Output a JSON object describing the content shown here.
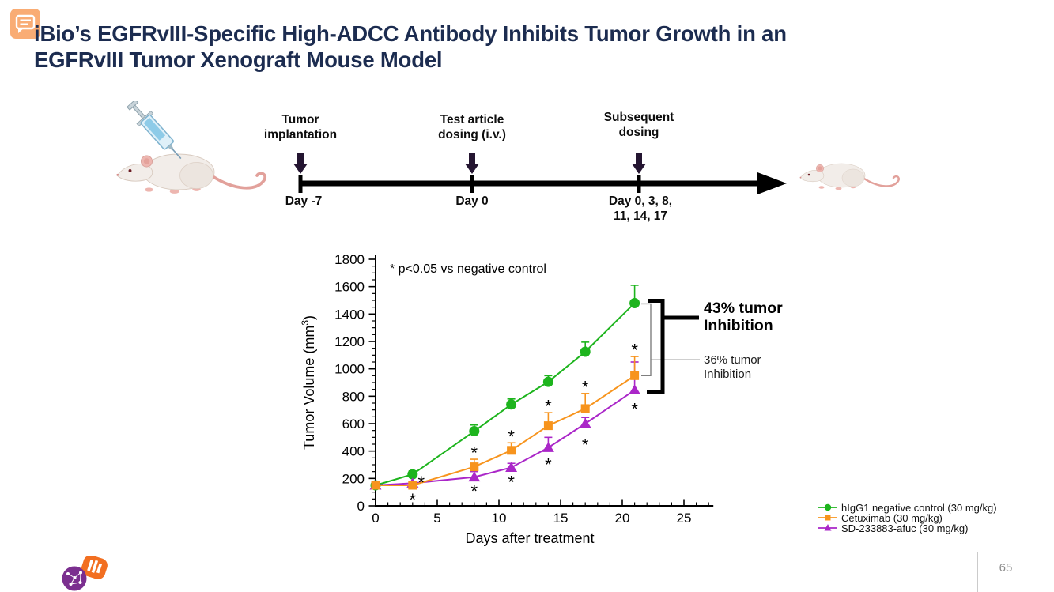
{
  "slide": {
    "title_line1": "iBio’s EGFRvIII-Specific High-ADCC Antibody Inhibits Tumor Growth in an",
    "title_line2": "EGFRvIII Tumor Xenograft Mouse Model",
    "page_number": "65"
  },
  "timeline": {
    "events": [
      {
        "label1": "Tumor",
        "label2": "implantation",
        "day1": "Day -7",
        "day2": ""
      },
      {
        "label1": "Test article",
        "label2": "dosing (i.v.)",
        "day1": "Day 0",
        "day2": ""
      },
      {
        "label1": "Subsequent",
        "label2": "dosing",
        "day1": "Day 0, 3, 8,",
        "day2": "11, 14, 17"
      }
    ]
  },
  "chart_data": {
    "type": "line",
    "title": "",
    "xlabel": "Days after treatment",
    "ylabel": "Tumor Volume (mm³)",
    "significance_note": "* p<0.05 vs negative control",
    "xlim": [
      0,
      27
    ],
    "ylim": [
      0,
      1800
    ],
    "x_ticks": [
      0,
      5,
      10,
      15,
      20,
      25
    ],
    "y_ticks": [
      0,
      200,
      400,
      600,
      800,
      1000,
      1200,
      1400,
      1600,
      1800
    ],
    "x_minor_step": 1,
    "y_minor_step": 50,
    "grid": false,
    "legend_position": "bottom-right",
    "x": [
      0,
      3,
      8,
      11,
      14,
      17,
      21
    ],
    "series": [
      {
        "name": "hIgG1 negative control (30 mg/kg)",
        "marker": "circle",
        "color": "#1db41d",
        "values": [
          150,
          230,
          545,
          740,
          905,
          1125,
          1480
        ],
        "errors_plus": [
          15,
          25,
          45,
          40,
          45,
          70,
          130
        ]
      },
      {
        "name": "Cetuximab (30 mg/kg)",
        "marker": "square",
        "color": "#f7941d",
        "values": [
          150,
          150,
          285,
          405,
          585,
          710,
          950
        ],
        "errors_plus": [
          10,
          15,
          55,
          55,
          95,
          110,
          140
        ]
      },
      {
        "name": "SD-233883-afuc (30 mg/kg)",
        "marker": "triangle",
        "color": "#aa26c8",
        "values": [
          150,
          165,
          210,
          280,
          425,
          600,
          845
        ],
        "errors_plus": [
          10,
          15,
          40,
          30,
          75,
          45,
          205
        ]
      }
    ],
    "asterisks": {
      "cetuximab": [
        [
          3.7,
          185
        ],
        [
          8,
          400
        ],
        [
          11,
          520
        ],
        [
          14,
          740
        ],
        [
          17,
          880
        ],
        [
          21,
          1150
        ]
      ],
      "sd_233883": [
        [
          3,
          58
        ],
        [
          8,
          122
        ],
        [
          11,
          188
        ],
        [
          14,
          315
        ],
        [
          17,
          458
        ],
        [
          21,
          718
        ]
      ]
    },
    "inhibition_labels": [
      {
        "line1": "43% tumor",
        "line2": "Inhibition",
        "percent": 43,
        "vs_series": "SD-233883-afuc (30 mg/kg)",
        "bold": true
      },
      {
        "line1": "36% tumor",
        "line2": "Inhibition",
        "percent": 36,
        "vs_series": "Cetuximab (30 mg/kg)",
        "bold": false
      }
    ]
  }
}
